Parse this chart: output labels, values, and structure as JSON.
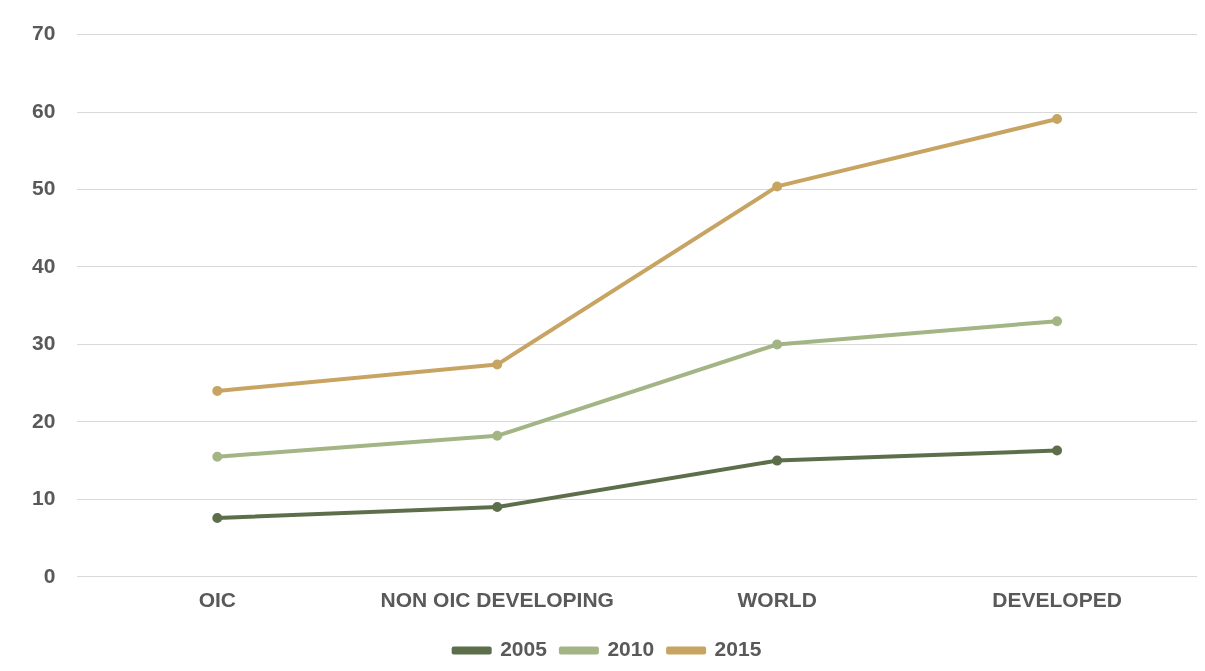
{
  "chart_data": {
    "type": "line",
    "categories": [
      "OIC",
      "NON OIC DEVELOPING",
      "WORLD",
      "DEVELOPED"
    ],
    "series": [
      {
        "name": "2005",
        "color": "#5c6e4a",
        "values": [
          7.6,
          9.0,
          15.0,
          16.3
        ]
      },
      {
        "name": "2010",
        "color": "#a3b584",
        "values": [
          15.5,
          18.2,
          30.0,
          33.0
        ]
      },
      {
        "name": "2015",
        "color": "#c8a463",
        "values": [
          24.0,
          27.4,
          50.4,
          59.1
        ]
      }
    ],
    "ylim": [
      0,
      70
    ],
    "yticks": [
      0,
      10,
      20,
      30,
      40,
      50,
      60,
      70
    ],
    "grid": "y",
    "legend": "bottom",
    "marker": "circle",
    "line_style": "solid"
  }
}
